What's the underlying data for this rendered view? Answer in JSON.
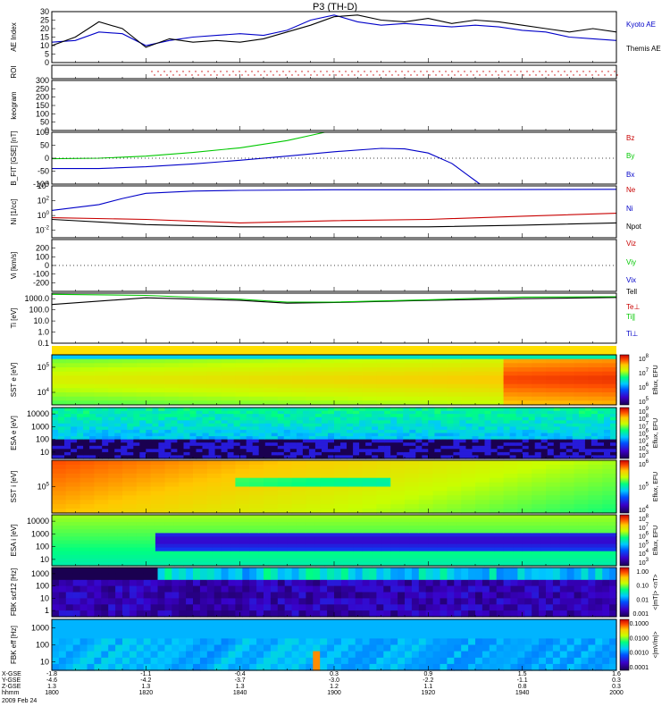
{
  "title": "P3 (TH-D)",
  "chart_data": [
    {
      "type": "line",
      "panel": "ae",
      "ylabel": "AE Index",
      "ylim": [
        0,
        30
      ],
      "yticks": [
        "0",
        "5",
        "10",
        "15",
        "20",
        "25",
        "30"
      ],
      "series": [
        {
          "name": "Kyoto AE",
          "color": "#0000c8",
          "x": [
            "1800",
            "1805",
            "1810",
            "1815",
            "1820",
            "1825",
            "1830",
            "1835",
            "1840",
            "1845",
            "1850",
            "1855",
            "1900",
            "1905",
            "1910",
            "1915",
            "1920",
            "1925",
            "1930",
            "1935",
            "1940",
            "1945",
            "1950",
            "1955",
            "2000"
          ],
          "values": [
            12,
            13,
            18,
            17,
            10,
            13,
            15,
            16,
            17,
            16,
            19,
            25,
            28,
            24,
            22,
            23,
            22,
            21,
            22,
            21,
            19,
            18,
            15,
            14,
            13
          ]
        },
        {
          "name": "Themis AE",
          "color": "#000000",
          "x": [
            "1800",
            "1805",
            "1810",
            "1815",
            "1820",
            "1825",
            "1830",
            "1835",
            "1840",
            "1845",
            "1850",
            "1855",
            "1900",
            "1905",
            "1910",
            "1915",
            "1920",
            "1925",
            "1930",
            "1935",
            "1940",
            "1945",
            "1950",
            "1955",
            "2000"
          ],
          "values": [
            10,
            15,
            24,
            20,
            9,
            14,
            12,
            13,
            12,
            14,
            18,
            22,
            27,
            28,
            25,
            24,
            26,
            23,
            25,
            24,
            22,
            20,
            18,
            20,
            18
          ]
        }
      ]
    },
    {
      "type": "scatter",
      "panel": "roi",
      "ylabel": "ROI",
      "ylim": [
        0,
        1
      ]
    },
    {
      "type": "line",
      "panel": "keogram",
      "ylabel": "keogram",
      "ylim": [
        0,
        300
      ],
      "yticks": [
        "0",
        "50",
        "100",
        "150",
        "200",
        "250",
        "300"
      ]
    },
    {
      "type": "line",
      "panel": "bfield",
      "ylabel": "B_FIT [GSE] [nT]",
      "ylim": [
        -100,
        100
      ],
      "yticks": [
        "-100",
        "-50",
        "0",
        "50",
        "100"
      ],
      "series": [
        {
          "name": "Bz",
          "color": "#c80000",
          "x": [],
          "values": []
        },
        {
          "name": "By",
          "color": "#00c800",
          "x": [
            "1800",
            "1810",
            "1820",
            "1830",
            "1840",
            "1850",
            "1855",
            "1858"
          ],
          "values": [
            -2,
            0,
            8,
            22,
            40,
            68,
            88,
            100
          ]
        },
        {
          "name": "Bx",
          "color": "#0000c8",
          "x": [
            "1800",
            "1810",
            "1820",
            "1830",
            "1840",
            "1850",
            "1900",
            "1910",
            "1915",
            "1920",
            "1925",
            "1928",
            "1931"
          ],
          "values": [
            -40,
            -40,
            -33,
            -22,
            -8,
            8,
            25,
            38,
            36,
            20,
            -20,
            -60,
            -100
          ]
        }
      ]
    },
    {
      "type": "line",
      "panel": "density",
      "ylabel": "Ni [1/cc]",
      "ylim_log10": [
        -3,
        4
      ],
      "yticks": [
        "10^4",
        "10^2",
        "10^0",
        "10^-2"
      ],
      "series": [
        {
          "name": "Ne",
          "color": "#c80000",
          "x": [
            "1800",
            "1820",
            "1840",
            "1900",
            "1920",
            "1940",
            "2000"
          ],
          "values": [
            0.5,
            0.3,
            0.1,
            0.2,
            0.3,
            0.8,
            2
          ]
        },
        {
          "name": "Ni",
          "color": "#0000c8",
          "x": [
            "1800",
            "1810",
            "1815",
            "1820",
            "1830",
            "1840",
            "1900",
            "1920",
            "1940",
            "2000"
          ],
          "values": [
            5,
            30,
            200,
            1000,
            2000,
            2500,
            3000,
            3000,
            3200,
            3500
          ]
        },
        {
          "name": "Npot",
          "color": "#000000",
          "x": [
            "1800",
            "1820",
            "1840",
            "1900",
            "1920",
            "1940",
            "2000"
          ],
          "values": [
            0.3,
            0.06,
            0.03,
            0.03,
            0.03,
            0.05,
            0.1
          ]
        }
      ]
    },
    {
      "type": "line",
      "panel": "velocity",
      "ylabel": "Vi [km/s]",
      "ylim": [
        -300,
        300
      ],
      "yticks": [
        "-200",
        "-100",
        "0",
        "100",
        "200"
      ],
      "series": [
        {
          "name": "Viz",
          "color": "#c80000"
        },
        {
          "name": "Viy",
          "color": "#00c800"
        },
        {
          "name": "Vix",
          "color": "#0000c8"
        }
      ]
    },
    {
      "type": "line",
      "panel": "temperature",
      "ylabel": "Ti [eV]",
      "ylim_log10": [
        -1,
        3.5
      ],
      "yticks": [
        "1000.0",
        "100.0",
        "10.0",
        "1.0",
        "0.1"
      ],
      "series": [
        {
          "name": "Tell",
          "color": "#000000",
          "x": [
            "1800",
            "1820",
            "1840",
            "1850",
            "1900",
            "1920",
            "1940",
            "2000"
          ],
          "values": [
            300,
            1200,
            700,
            400,
            450,
            700,
            1000,
            1300
          ]
        },
        {
          "name": "Te⊥",
          "color": "#c80000"
        },
        {
          "name": "Ti∥",
          "color": "#00c800",
          "x": [
            "1800",
            "1820",
            "1840",
            "1850",
            "1900",
            "1920",
            "1940",
            "2000"
          ],
          "values": [
            2500,
            2000,
            900,
            500,
            500,
            800,
            1400,
            1500
          ]
        },
        {
          "name": "Ti⊥",
          "color": "#0000c8"
        }
      ]
    },
    {
      "type": "heatmap",
      "panel": "sst_e",
      "ylabel": "SST e [eV]",
      "yticks": [
        "10^5",
        "10^4"
      ],
      "colorbar_label": "Eflux, EFU",
      "colorbar_ticks": [
        "10^8",
        "10^7",
        "10^6",
        "10^5"
      ]
    },
    {
      "type": "heatmap",
      "panel": "esa_e",
      "ylabel": "ESA e [eV]",
      "yticks": [
        "10000",
        "1000",
        "100",
        "10"
      ],
      "colorbar_label": "Eflux, EFU",
      "colorbar_ticks": [
        "10^9",
        "10^8",
        "10^7",
        "10^6",
        "10^5",
        "10^4",
        "10^3"
      ]
    },
    {
      "type": "heatmap",
      "panel": "sst_i",
      "ylabel": "SST i [eV]",
      "yticks": [
        "10^5"
      ],
      "colorbar_label": "Eflux, EFU",
      "colorbar_ticks": [
        "10^6",
        "10^5",
        "10^4"
      ]
    },
    {
      "type": "heatmap",
      "panel": "esa_i",
      "ylabel": "ESA i [eV]",
      "yticks": [
        "10000",
        "1000",
        "100",
        "10"
      ],
      "colorbar_label": "Eflux, EFU",
      "colorbar_ticks": [
        "10^8",
        "10^7",
        "10^6",
        "10^5",
        "10^4",
        "10^3"
      ]
    },
    {
      "type": "heatmap",
      "panel": "fbk_scm",
      "ylabel": "FBK scf12 [Hz]",
      "yticks": [
        "1000",
        "100",
        "10",
        "1"
      ],
      "colorbar_label": "<|mT|> <nT>",
      "colorbar_ticks": [
        "1.00",
        "0.10",
        "0.01",
        "0.001"
      ]
    },
    {
      "type": "heatmap",
      "panel": "fbk_efi",
      "ylabel": "FBK eff [Hz]",
      "yticks": [
        "1000",
        "100",
        "10"
      ],
      "colorbar_label": "<|mV/m|>",
      "colorbar_ticks": [
        "0.1000",
        "0.0100",
        "0.0010",
        "0.0001"
      ]
    }
  ],
  "legends": {
    "ae": [
      "Kyoto AE",
      "Themis AE"
    ],
    "bfield": [
      "Bz",
      "By",
      "Bx"
    ],
    "density": [
      "Ne",
      "Ni",
      "Npot"
    ],
    "velocity": [
      "Viz",
      "Viy",
      "Vix"
    ],
    "temperature": [
      "Tell",
      "Te⊥",
      "Ti∥",
      "Ti⊥"
    ]
  },
  "xaxis": {
    "row_labels": [
      "X-GSE",
      "Y-GSE",
      "Z-GSE",
      "hhmm",
      "2009 Feb 24"
    ],
    "ticks": [
      {
        "x": "1800",
        "X": "-1.8",
        "Y": "-4.6",
        "Z": "1.3",
        "t": "1800"
      },
      {
        "x": "1820",
        "X": "-1.1",
        "Y": "-4.2",
        "Z": "1.3",
        "t": "1820"
      },
      {
        "x": "1840",
        "X": "-0.4",
        "Y": "-3.7",
        "Z": "1.3",
        "t": "1840"
      },
      {
        "x": "1900",
        "X": "0.3",
        "Y": "-3.0",
        "Z": "1.2",
        "t": "1900"
      },
      {
        "x": "1920",
        "X": "0.9",
        "Y": "-2.2",
        "Z": "1.1",
        "t": "1920"
      },
      {
        "x": "1940",
        "X": "1.5",
        "Y": "-1.1",
        "Z": "0.8",
        "t": "1940"
      },
      {
        "x": "2000",
        "X": "1.6",
        "Y": "0.3",
        "Z": "0.3",
        "t": "2000"
      }
    ]
  },
  "colors": {
    "kyoto": "#0000c8",
    "themis": "#000000",
    "bz": "#c80000",
    "by": "#00c800",
    "bx": "#0000c8",
    "ne": "#c80000",
    "ni": "#0000c8",
    "npot": "#000000",
    "viz": "#c80000",
    "viy": "#00c800",
    "vix": "#0000c8",
    "tell": "#000000",
    "teperp": "#c80000",
    "tipar": "#00c800",
    "tiperp": "#0000c8"
  }
}
